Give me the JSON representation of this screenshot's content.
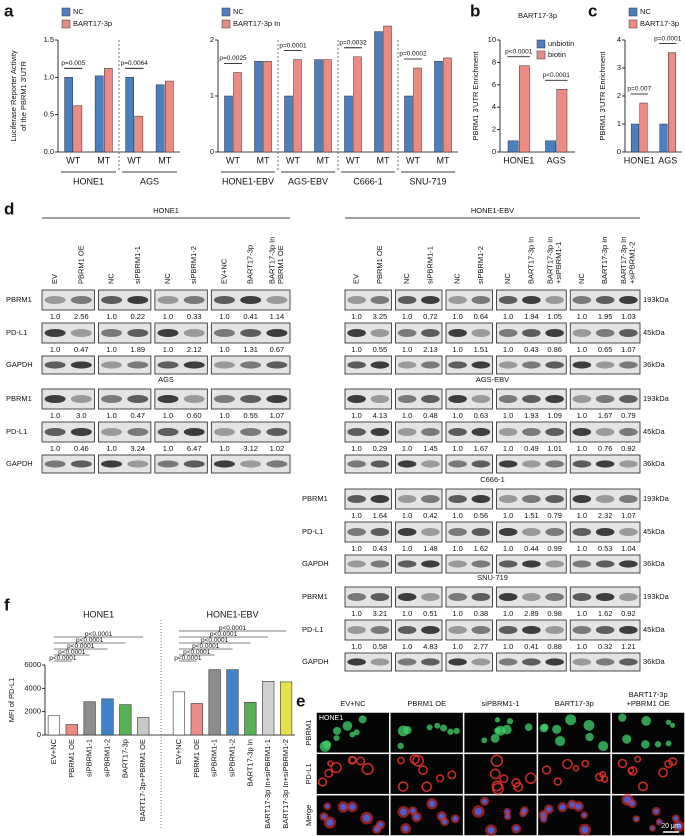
{
  "panels": [
    "a",
    "b",
    "c",
    "d",
    "e",
    "f"
  ],
  "chart_data": [
    {
      "type": "bar",
      "ylabel": [
        "Luciferase Reporter Activity",
        "of the PBRM1 3'UTR"
      ],
      "categories": [
        "WT",
        "MT",
        "WT",
        "MT"
      ],
      "groups": [
        "HONE1",
        "AGS"
      ],
      "series": [
        {
          "name": "NC",
          "color": "#4c7fc0",
          "values": [
            1.0,
            1.02,
            1.0,
            0.9
          ]
        },
        {
          "name": "BART17-3p",
          "color": "#ec8a84",
          "values": [
            0.62,
            1.12,
            0.48,
            0.95
          ]
        }
      ],
      "ylim": [
        0,
        1.5
      ],
      "yticks": [
        {
          "value": 0,
          "label": "0.0"
        },
        0.5,
        {
          "value": 1,
          "label": "1.0"
        },
        1.5
      ],
      "annotations": [
        "p=0.005",
        "p=0.0064"
      ],
      "legend": "upper left"
    },
    {
      "type": "bar",
      "categories": [
        "WT",
        "MT",
        "WT",
        "MT",
        "WT",
        "MT",
        "WT",
        "MT"
      ],
      "groups": [
        "HONE1-EBV",
        "AGS-EBV",
        "C666-1",
        "SNU-719"
      ],
      "series": [
        {
          "name": "NC",
          "color": "#4c7fc0",
          "values": [
            1.0,
            1.62,
            1.0,
            1.65,
            1.0,
            2.15,
            1.0,
            1.62
          ]
        },
        {
          "name": "BART17-3p In",
          "color": "#ec8a84",
          "values": [
            1.42,
            1.62,
            1.65,
            1.65,
            1.7,
            2.25,
            1.5,
            1.68
          ]
        }
      ],
      "ylim": [
        0,
        2
      ],
      "yticks": [
        0,
        1,
        2
      ],
      "annotations": [
        "p=0.0025",
        "p=0.0001",
        "p=0.0032",
        "p=0.0002"
      ],
      "legend": "upper left"
    },
    {
      "type": "bar",
      "title": "BART17-3p",
      "ylabel": "PBRM1 3'UTR Enrichment",
      "categories": [
        "HONE1",
        "AGS"
      ],
      "series": [
        {
          "name": "unbiotin",
          "color": "#4c7fc0",
          "values": [
            1.0,
            1.0
          ]
        },
        {
          "name": "biotin",
          "color": "#ec8a84",
          "values": [
            7.7,
            5.6
          ]
        }
      ],
      "ylim": [
        0,
        10
      ],
      "yticks": [
        0,
        2,
        4,
        6,
        8,
        10
      ],
      "annotations": [
        "p<0.0001",
        "p<0.0001"
      ],
      "legend": "upper right"
    },
    {
      "type": "bar",
      "ylabel": "PBRM1 3'UTR Enrichment",
      "categories": [
        "HONE1",
        "AGS"
      ],
      "series": [
        {
          "name": "NC",
          "color": "#4c7fc0",
          "values": [
            1.0,
            1.0
          ]
        },
        {
          "name": "BART17-3p",
          "color": "#ec8a84",
          "values": [
            1.75,
            3.55
          ]
        }
      ],
      "ylim": [
        0,
        4
      ],
      "yticks": [
        0,
        1,
        2,
        3,
        4
      ],
      "annotations": [
        "p=0.007",
        "p=0.0001"
      ],
      "legend": "upper left"
    },
    {
      "type": "bar",
      "ylabel": "MFI of PD-L1",
      "groups": [
        {
          "name": "HONE1",
          "categories": [
            "EV+NC",
            "PBRM1 OE",
            "siPBRM1-1",
            "siPBRM1-2",
            "BART17-3p",
            "BART17-3p+PBRM1 OE"
          ],
          "values": [
            1650,
            900,
            2850,
            3100,
            2600,
            1500
          ],
          "colors": [
            "#ffffff",
            "#ec8a84",
            "#8c8c8c",
            "#3f83c9",
            "#55b153",
            "#c8c8c8"
          ],
          "annotations": [
            "p<0.0001",
            "p<0.0001",
            "p<0.0001",
            "p<0.0001",
            "p<0.0001"
          ]
        },
        {
          "name": "HONE1-EBV",
          "categories": [
            "EV+NC",
            "PBRM1 OE",
            "siPBRM1-1",
            "siPBRM1-2",
            "BART17-3p In",
            "BART17-3p In+siPBRM1-1",
            "BART17-3p In+siPBRM1-2"
          ],
          "values": [
            3700,
            2700,
            5600,
            5600,
            2800,
            4600,
            4550
          ],
          "colors": [
            "#ffffff",
            "#ec8a84",
            "#8c8c8c",
            "#3f83c9",
            "#55b153",
            "#d0d0d0",
            "#e8e04a"
          ],
          "annotations": [
            "p<0.0001",
            "p<0.0001",
            "p<0.0001",
            "p<0.0001",
            "p<0.0001",
            "p<0.0001"
          ]
        }
      ],
      "ylim": [
        0,
        6000
      ],
      "yticks": [
        0,
        2000,
        4000,
        6000
      ]
    }
  ],
  "blots": {
    "proteins": [
      "PBRM1",
      "PD-L1",
      "GAPDH"
    ],
    "markers": [
      "193kDa",
      "45kDa",
      "36kDa"
    ],
    "left": {
      "lanes": [
        [
          "EV",
          "PBRM1 OE"
        ],
        [
          "NC",
          "siPBRM1-1"
        ],
        [
          "NC",
          "siPBRM1-2"
        ],
        [
          "EV+NC",
          "BART17-3p",
          [
            "BART17-3p In",
            "PBRM1 OE"
          ]
        ]
      ],
      "cells": [
        {
          "title": "HONE1",
          "pbrm1": [
            [
              "1.0",
              "2.56"
            ],
            [
              "1.0",
              "0.22"
            ],
            [
              "1.0",
              "0.33"
            ],
            [
              "1.0",
              "0.41",
              "1.14"
            ]
          ],
          "pdl1": [
            [
              "1.0",
              "0.47"
            ],
            [
              "1.0",
              "1.89"
            ],
            [
              "1.0",
              "2.12"
            ],
            [
              "1.0",
              "1.31",
              "0.67"
            ]
          ]
        },
        {
          "title": "AGS",
          "pbrm1": [
            [
              "1.0",
              "3.0"
            ],
            [
              "1.0",
              "0.47"
            ],
            [
              "1.0",
              "0.60"
            ],
            [
              "1.0",
              "0.55",
              "1.07"
            ]
          ],
          "pdl1": [
            [
              "1.0",
              "0.46"
            ],
            [
              "1.0",
              "3.24"
            ],
            [
              "1.0",
              "6.47"
            ],
            [
              "1.0",
              "3.12",
              "1.02"
            ]
          ]
        }
      ]
    },
    "right": {
      "lanes": [
        [
          "EV",
          "PBRM1 OE"
        ],
        [
          "NC",
          "siPBRM1-1"
        ],
        [
          "NC",
          "siPBRM1-2"
        ],
        [
          "NC",
          "BART17-3p In",
          [
            "BART17-3p In",
            "+siPBRM1-1"
          ]
        ],
        [
          "NC",
          "BART17-3p In",
          [
            "BART17-3p In",
            "+siPBRM1-2"
          ]
        ]
      ],
      "cells": [
        {
          "title": "HONE1-EBV",
          "pbrm1": [
            [
              "1.0",
              "3.25"
            ],
            [
              "1.0",
              "0.72"
            ],
            [
              "1.0",
              "0.64"
            ],
            [
              "1.0",
              "1.94",
              "1.05"
            ],
            [
              "1.0",
              "1.95",
              "1.03"
            ]
          ],
          "pdl1": [
            [
              "1.0",
              "0.55"
            ],
            [
              "1.0",
              "2.13"
            ],
            [
              "1.0",
              "1.51"
            ],
            [
              "1.0",
              "0.43",
              "0.86"
            ],
            [
              "1.0",
              "0.65",
              "1.07"
            ]
          ]
        },
        {
          "title": "AGS-EBV",
          "pbrm1": [
            [
              "1.0",
              "4.13"
            ],
            [
              "1.0",
              "0.48"
            ],
            [
              "1.0",
              "0.63"
            ],
            [
              "1.0",
              "1.93",
              "1.09"
            ],
            [
              "1.0",
              "1.67",
              "0.79"
            ]
          ],
          "pdl1": [
            [
              "1.0",
              "0.29"
            ],
            [
              "1.0",
              "1.45"
            ],
            [
              "1.0",
              "1.67"
            ],
            [
              "1.0",
              "0.49",
              "1.01"
            ],
            [
              "1.0",
              "0.76",
              "0.92"
            ]
          ]
        },
        {
          "title": "C666-1",
          "pbrm1": [
            [
              "1.0",
              "1.64"
            ],
            [
              "1.0",
              "0.42"
            ],
            [
              "1.0",
              "0.56"
            ],
            [
              "1.0",
              "1.51",
              "0.79"
            ],
            [
              "1.0",
              "2.32",
              "1.07"
            ]
          ],
          "pdl1": [
            [
              "1.0",
              "0.43"
            ],
            [
              "1.0",
              "1.48"
            ],
            [
              "1.0",
              "1.62"
            ],
            [
              "1.0",
              "0.44",
              "0.99"
            ],
            [
              "1.0",
              "0.53",
              "1.04"
            ]
          ]
        },
        {
          "title": "SNU-719",
          "pbrm1": [
            [
              "1.0",
              "3.21"
            ],
            [
              "1.0",
              "0.51"
            ],
            [
              "1.0",
              "0.38"
            ],
            [
              "1.0",
              "2.89",
              "0.98"
            ],
            [
              "1.0",
              "1.62",
              "0.92"
            ]
          ],
          "pdl1": [
            [
              "1.0",
              "0.58"
            ],
            [
              "1.0",
              "4.83"
            ],
            [
              "1.0",
              "2.77"
            ],
            [
              "1.0",
              "0.41",
              "0.88"
            ],
            [
              "1.0",
              "0.32",
              "1.21"
            ]
          ]
        }
      ]
    }
  },
  "micrograph": {
    "cell_line": "HONE1",
    "columns": [
      "EV+NC",
      "PBRM1 OE",
      "siPBRM1-1",
      "BART17-3p",
      [
        "BART17-3p",
        "+PBRM1 OE"
      ]
    ],
    "rows": [
      "PBRM1",
      "PD-L1",
      "Merge"
    ],
    "scale_bar": "20 μm"
  }
}
